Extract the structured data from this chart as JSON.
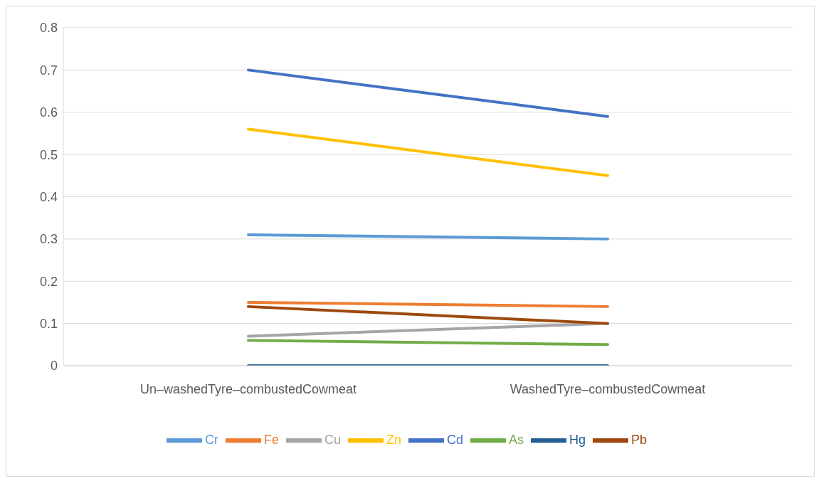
{
  "chart_data": {
    "type": "line",
    "categories": [
      "Un–washedTyre–combustedCowmeat",
      "WashedTyre–combustedCowmeat"
    ],
    "series": [
      {
        "name": "Cr",
        "color": "#5b9bd5",
        "values": [
          0.31,
          0.3
        ]
      },
      {
        "name": "Fe",
        "color": "#ed7d31",
        "values": [
          0.15,
          0.14
        ]
      },
      {
        "name": "Cu",
        "color": "#a5a5a5",
        "values": [
          0.07,
          0.1
        ]
      },
      {
        "name": "Zn",
        "color": "#ffc000",
        "values": [
          0.56,
          0.45
        ]
      },
      {
        "name": "Cd",
        "color": "#4472c4",
        "values": [
          0.7,
          0.59
        ]
      },
      {
        "name": "As",
        "color": "#70ad47",
        "values": [
          0.06,
          0.05
        ]
      },
      {
        "name": "Hg",
        "color": "#255e91",
        "values": [
          0,
          0
        ]
      },
      {
        "name": "Pb",
        "color": "#9e480e",
        "values": [
          0.14,
          0.1
        ]
      }
    ],
    "ylim": [
      0,
      0.8
    ],
    "yticks": [
      0,
      0.1,
      0.2,
      0.3,
      0.4,
      0.5,
      0.6,
      0.7,
      0.8
    ],
    "grid": "y",
    "legend": "bottom"
  }
}
